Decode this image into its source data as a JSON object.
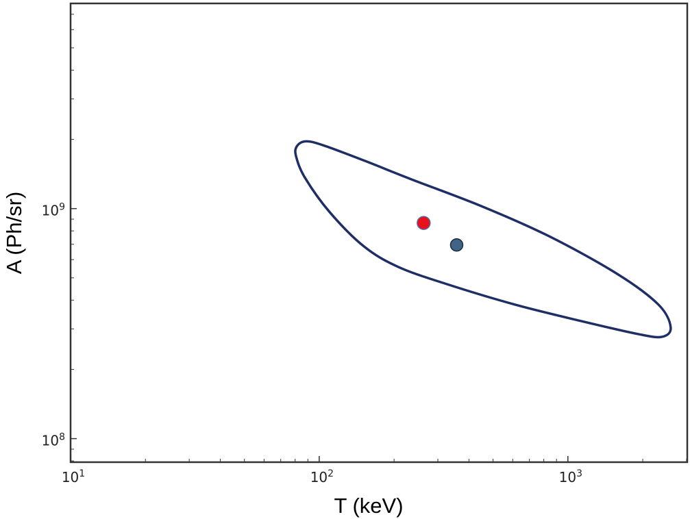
{
  "chart_data": {
    "type": "scatter",
    "title": "",
    "xlabel": "T (keV)",
    "ylabel": "A (Ph/sr)",
    "xscale": "log",
    "yscale": "log",
    "xlim": [
      10,
      3020
    ],
    "ylim": [
      79000000,
      7800000000
    ],
    "grid": false,
    "x_ticks": [
      {
        "value": 10,
        "base": "10",
        "exp": "1"
      },
      {
        "value": 100,
        "base": "10",
        "exp": "2"
      },
      {
        "value": 1000,
        "base": "10",
        "exp": "3"
      }
    ],
    "y_ticks": [
      {
        "value": 100000000,
        "base": "10",
        "exp": "8"
      },
      {
        "value": 1000000000,
        "base": "10",
        "exp": "9"
      }
    ],
    "points": [
      {
        "name": "red-point",
        "x": 263,
        "y": 866000000,
        "color": "#e8101a",
        "edge": "#5a6aa8"
      },
      {
        "name": "blue-point",
        "x": 357,
        "y": 695000000,
        "color": "#3f6485",
        "edge": "#1a2a3a"
      }
    ],
    "contour": {
      "color": "#1f2f66",
      "points": [
        [
          80.9,
          1850000000.0
        ],
        [
          87.7,
          1960000000.0
        ],
        [
          103,
          1890000000.0
        ],
        [
          151,
          1620000000.0
        ],
        [
          235,
          1340000000.0
        ],
        [
          444,
          1030000000.0
        ],
        [
          837,
          760000000.0
        ],
        [
          1580,
          520000000.0
        ],
        [
          2310,
          383000000.0
        ],
        [
          2590,
          305000000.0
        ],
        [
          2390,
          277000000.0
        ],
        [
          1910,
          285000000.0
        ],
        [
          1150,
          323000000.0
        ],
        [
          610,
          383000000.0
        ],
        [
          323,
          471000000.0
        ],
        [
          207,
          559000000.0
        ],
        [
          151,
          686000000.0
        ],
        [
          110,
          967000000.0
        ],
        [
          87.7,
          1360000000.0
        ],
        [
          80.9,
          1670000000.0
        ]
      ]
    }
  }
}
